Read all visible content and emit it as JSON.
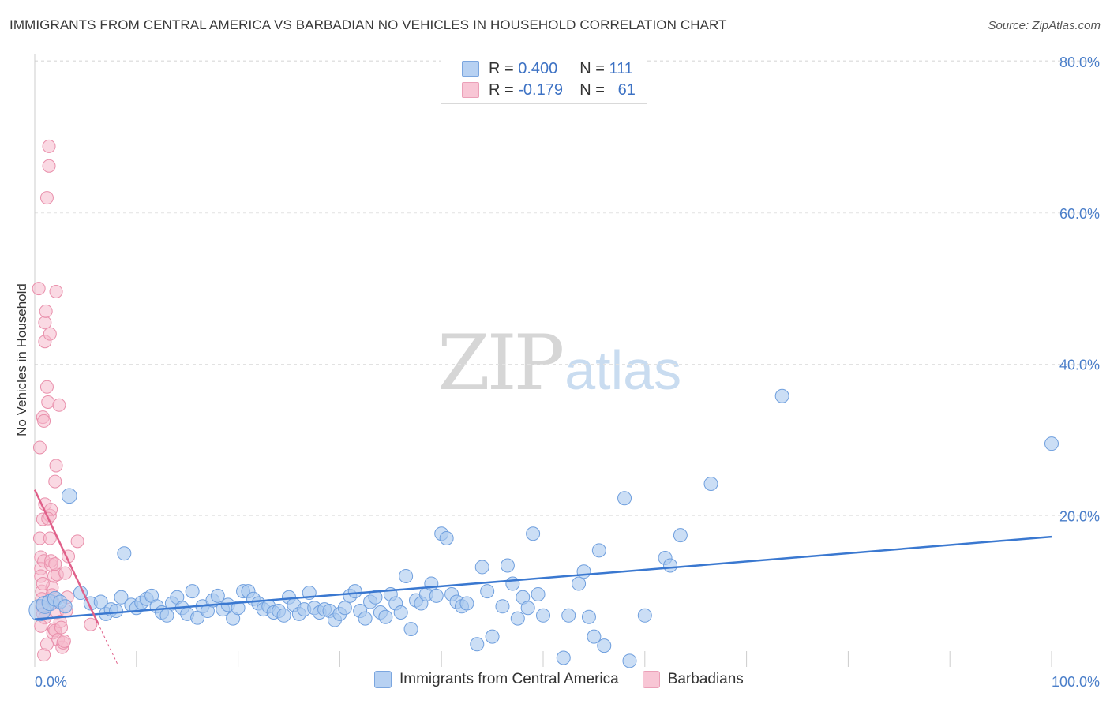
{
  "title": "IMMIGRANTS FROM CENTRAL AMERICA VS BARBADIAN NO VEHICLES IN HOUSEHOLD CORRELATION CHART",
  "source": "Source: ZipAtlas.com",
  "watermark": {
    "zip": "ZIP",
    "atlas": "atlas"
  },
  "legend": {
    "rows": [
      {
        "r_label": "R =",
        "r_value": "0.400",
        "n_label": "N =",
        "n_value": "111"
      },
      {
        "r_label": "R =",
        "r_value": "-0.179",
        "n_label": "N =",
        "n_value": "61"
      }
    ]
  },
  "bottom_legend": {
    "series1": "Immigrants from Central America",
    "series2": "Barbadians"
  },
  "colors": {
    "blue_fill": "#a9c8ef",
    "blue_stroke": "#6f9fde",
    "blue_line": "#3a78d0",
    "pink_fill": "#f5b9cc",
    "pink_stroke": "#e98fab",
    "pink_line": "#e0608a",
    "grid": "#e2e2e2",
    "axis_text": "#4a7ec9"
  },
  "chart_data": {
    "type": "scatter",
    "title": "IMMIGRANTS FROM CENTRAL AMERICA VS BARBADIAN NO VEHICLES IN HOUSEHOLD CORRELATION CHART",
    "xlabel": "",
    "ylabel": "No Vehicles in Household",
    "xlim": [
      0,
      100
    ],
    "ylim": [
      0,
      80
    ],
    "x_tick_labels": [
      "0.0%",
      "100.0%"
    ],
    "y_ticks": [
      20,
      40,
      60,
      80
    ],
    "y_tick_labels": [
      "20.0%",
      "40.0%",
      "60.0%",
      "80.0%"
    ],
    "grid": true,
    "series": [
      {
        "name": "Immigrants from Central America",
        "R": 0.4,
        "N": 111,
        "trend": {
          "x": [
            0,
            100
          ],
          "y": [
            6.3,
            17.2
          ]
        },
        "points": [
          [
            0.5,
            7.5,
            1.6
          ],
          [
            1.0,
            8.2,
            1.3
          ],
          [
            1.5,
            8.5,
            1.2
          ],
          [
            2.0,
            9.0,
            1.1
          ],
          [
            2.5,
            8.6,
            1
          ],
          [
            3.0,
            8.0,
            1
          ],
          [
            3.4,
            22.6,
            1.1
          ],
          [
            4.5,
            9.8,
            1
          ],
          [
            5.5,
            8.4,
            1
          ],
          [
            6.5,
            8.6,
            1
          ],
          [
            7.0,
            7.0,
            1
          ],
          [
            7.5,
            7.6,
            1
          ],
          [
            8.0,
            7.4,
            1
          ],
          [
            8.5,
            9.2,
            1
          ],
          [
            8.8,
            15.0,
            1
          ],
          [
            9.5,
            8.2,
            1
          ],
          [
            10.0,
            7.8,
            1
          ],
          [
            10.5,
            8.5,
            1
          ],
          [
            11.0,
            9.0,
            1
          ],
          [
            11.5,
            9.4,
            1
          ],
          [
            12.0,
            8.0,
            1
          ],
          [
            12.5,
            7.2,
            1
          ],
          [
            13.0,
            6.8,
            1
          ],
          [
            13.5,
            8.4,
            1
          ],
          [
            14.0,
            9.2,
            1
          ],
          [
            14.5,
            7.8,
            1
          ],
          [
            15.0,
            7.0,
            1
          ],
          [
            15.5,
            10.0,
            1
          ],
          [
            16.0,
            6.5,
            1
          ],
          [
            16.5,
            8.0,
            1
          ],
          [
            17.0,
            7.4,
            1
          ],
          [
            17.5,
            8.8,
            1
          ],
          [
            18.0,
            9.4,
            1
          ],
          [
            18.5,
            7.6,
            1
          ],
          [
            19.0,
            8.2,
            1
          ],
          [
            19.5,
            6.4,
            1
          ],
          [
            20.0,
            7.8,
            1
          ],
          [
            20.5,
            10.0,
            1
          ],
          [
            21.0,
            10.0,
            1
          ],
          [
            21.5,
            9.0,
            1
          ],
          [
            22.0,
            8.4,
            1
          ],
          [
            22.5,
            7.6,
            1
          ],
          [
            23.0,
            8.0,
            1
          ],
          [
            23.5,
            7.2,
            1
          ],
          [
            24.0,
            7.4,
            1
          ],
          [
            24.5,
            6.8,
            1
          ],
          [
            25.0,
            9.2,
            1
          ],
          [
            25.5,
            8.2,
            1
          ],
          [
            26.0,
            7.0,
            1
          ],
          [
            26.5,
            7.6,
            1
          ],
          [
            27.0,
            9.8,
            1
          ],
          [
            27.5,
            7.8,
            1
          ],
          [
            28.0,
            7.2,
            1
          ],
          [
            28.5,
            7.6,
            1
          ],
          [
            29.0,
            7.4,
            1
          ],
          [
            29.5,
            6.2,
            1
          ],
          [
            30.0,
            7.0,
            1
          ],
          [
            30.5,
            7.8,
            1
          ],
          [
            31.0,
            9.4,
            1
          ],
          [
            31.5,
            10.0,
            1
          ],
          [
            32.0,
            7.4,
            1
          ],
          [
            32.5,
            6.4,
            1
          ],
          [
            33.0,
            8.6,
            1
          ],
          [
            33.5,
            9.2,
            1
          ],
          [
            34.0,
            7.2,
            1
          ],
          [
            34.5,
            6.6,
            1
          ],
          [
            35.0,
            9.6,
            1
          ],
          [
            35.5,
            8.4,
            1
          ],
          [
            36.0,
            7.2,
            1
          ],
          [
            36.5,
            12.0,
            1
          ],
          [
            37.0,
            5.0,
            1
          ],
          [
            37.5,
            8.8,
            1
          ],
          [
            38.0,
            8.4,
            1
          ],
          [
            38.5,
            9.6,
            1
          ],
          [
            39.0,
            11.0,
            1
          ],
          [
            39.5,
            9.4,
            1
          ],
          [
            40.0,
            17.6,
            1
          ],
          [
            40.5,
            17.0,
            1
          ],
          [
            41.0,
            9.6,
            1
          ],
          [
            41.5,
            8.6,
            1
          ],
          [
            42.0,
            8.0,
            1
          ],
          [
            42.5,
            8.4,
            1
          ],
          [
            43.5,
            3.0,
            1
          ],
          [
            44.0,
            13.2,
            1
          ],
          [
            44.5,
            10.0,
            1
          ],
          [
            45.0,
            4.0,
            1
          ],
          [
            46.0,
            8.0,
            1
          ],
          [
            46.5,
            13.4,
            1
          ],
          [
            47.0,
            11.0,
            1
          ],
          [
            47.5,
            6.4,
            1
          ],
          [
            48.0,
            9.2,
            1
          ],
          [
            48.5,
            7.8,
            1
          ],
          [
            49.0,
            17.6,
            1
          ],
          [
            49.5,
            9.6,
            1
          ],
          [
            50.0,
            6.8,
            1
          ],
          [
            52.0,
            1.2,
            1
          ],
          [
            52.5,
            6.8,
            1
          ],
          [
            53.5,
            11.0,
            1
          ],
          [
            54.0,
            12.6,
            1
          ],
          [
            54.5,
            6.6,
            1
          ],
          [
            55.0,
            4.0,
            1
          ],
          [
            55.5,
            15.4,
            1
          ],
          [
            56.0,
            2.8,
            1
          ],
          [
            58.0,
            22.3,
            1
          ],
          [
            58.5,
            0.8,
            1
          ],
          [
            60.0,
            6.8,
            1
          ],
          [
            62.0,
            14.4,
            1
          ],
          [
            62.5,
            13.4,
            1
          ],
          [
            63.5,
            17.4,
            1
          ],
          [
            66.5,
            24.2,
            1
          ],
          [
            73.5,
            35.8,
            1
          ],
          [
            100.0,
            29.5,
            1
          ]
        ]
      },
      {
        "name": "Barbadians",
        "R": -0.179,
        "N": 61,
        "trend": {
          "x": [
            0,
            6.2
          ],
          "y": [
            23.4,
            5.8
          ]
        },
        "trend_dashed": {
          "x": [
            6.2,
            8.2
          ],
          "y": [
            5.8,
            0.2
          ]
        },
        "points": [
          [
            0.4,
            50.0
          ],
          [
            0.5,
            29.0
          ],
          [
            0.5,
            17.0
          ],
          [
            0.6,
            14.5
          ],
          [
            0.6,
            13.0
          ],
          [
            0.6,
            12.0
          ],
          [
            0.7,
            10.0
          ],
          [
            0.7,
            9.0
          ],
          [
            0.7,
            8.0
          ],
          [
            0.8,
            7.0
          ],
          [
            0.8,
            33.0
          ],
          [
            0.8,
            19.5
          ],
          [
            0.9,
            14.0
          ],
          [
            0.9,
            32.5
          ],
          [
            1.0,
            43.0
          ],
          [
            1.0,
            45.5
          ],
          [
            1.0,
            6.5
          ],
          [
            1.0,
            21.5
          ],
          [
            1.1,
            47.0
          ],
          [
            1.2,
            62.0
          ],
          [
            1.2,
            37.0
          ],
          [
            1.3,
            35.0
          ],
          [
            1.4,
            66.2
          ],
          [
            1.4,
            68.8
          ],
          [
            1.5,
            44.0
          ],
          [
            1.5,
            20.0
          ],
          [
            1.5,
            17.0
          ],
          [
            1.6,
            13.5
          ],
          [
            1.6,
            14.0
          ],
          [
            1.7,
            10.5
          ],
          [
            1.7,
            9.5
          ],
          [
            1.8,
            8.6
          ],
          [
            1.8,
            4.5
          ],
          [
            1.9,
            12.0
          ],
          [
            1.9,
            5.0
          ],
          [
            2.0,
            24.5
          ],
          [
            2.0,
            4.8
          ],
          [
            2.1,
            26.6
          ],
          [
            2.1,
            49.6
          ],
          [
            2.2,
            12.2
          ],
          [
            2.2,
            7.2
          ],
          [
            2.3,
            3.6
          ],
          [
            2.4,
            34.6
          ],
          [
            2.5,
            6.0
          ],
          [
            2.6,
            5.2
          ],
          [
            2.7,
            2.6
          ],
          [
            2.8,
            3.2
          ],
          [
            2.9,
            3.4
          ],
          [
            3.0,
            12.4
          ],
          [
            3.1,
            7.4
          ],
          [
            3.2,
            9.2
          ],
          [
            3.3,
            14.6
          ],
          [
            4.2,
            16.6
          ],
          [
            5.5,
            5.6
          ],
          [
            0.9,
            1.6
          ],
          [
            1.2,
            3.0
          ],
          [
            0.6,
            5.4
          ],
          [
            0.8,
            11.0
          ],
          [
            1.6,
            20.8
          ],
          [
            1.3,
            19.6
          ],
          [
            2.0,
            13.6
          ]
        ]
      }
    ]
  }
}
